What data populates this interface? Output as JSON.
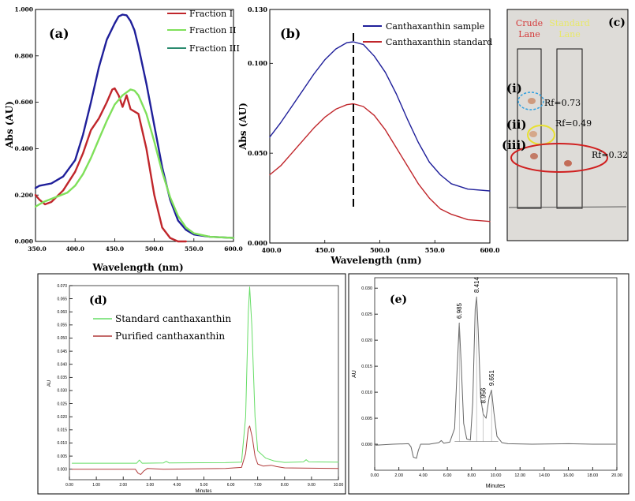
{
  "colors": {
    "blue": "#1f1f9a",
    "red": "#c0262b",
    "green": "#7fe05a",
    "teal": "#2a8a6e",
    "hplc_green": "#66dd66",
    "hplc_red": "#b03a3a",
    "hplc_gray": "#666666",
    "tlc_bg": "#dedcd8",
    "crude_label": "#d43b3b",
    "standard_label": "#e8e86a"
  },
  "chart_data": [
    {
      "id": "a",
      "type": "line",
      "panel_label": "(a)",
      "xlabel": "Wavelength (nm)",
      "ylabel": "Abs (AU)",
      "xlim": [
        350,
        600
      ],
      "ylim": [
        0,
        1.0
      ],
      "xticks": [
        "350.0",
        "400.0",
        "450.0",
        "500.0",
        "550.0",
        "600.0"
      ],
      "yticks": [
        "0.000",
        "0.200",
        "0.400",
        "0.600",
        "0.800",
        "1.000"
      ],
      "legend": [
        "Fraction I",
        "Fraction II",
        "Fraction III"
      ],
      "series": [
        {
          "name": "Fraction III",
          "color": "blue",
          "points": [
            [
              350,
              0.23
            ],
            [
              355,
              0.24
            ],
            [
              370,
              0.25
            ],
            [
              385,
              0.28
            ],
            [
              400,
              0.35
            ],
            [
              410,
              0.46
            ],
            [
              420,
              0.6
            ],
            [
              430,
              0.75
            ],
            [
              440,
              0.87
            ],
            [
              450,
              0.94
            ],
            [
              455,
              0.97
            ],
            [
              460,
              0.978
            ],
            [
              465,
              0.975
            ],
            [
              470,
              0.95
            ],
            [
              475,
              0.91
            ],
            [
              480,
              0.84
            ],
            [
              490,
              0.68
            ],
            [
              500,
              0.5
            ],
            [
              510,
              0.32
            ],
            [
              520,
              0.18
            ],
            [
              530,
              0.09
            ],
            [
              540,
              0.05
            ],
            [
              550,
              0.03
            ],
            [
              570,
              0.02
            ],
            [
              600,
              0.015
            ]
          ]
        },
        {
          "name": "Fraction I",
          "color": "red",
          "points": [
            [
              350,
              0.2
            ],
            [
              355,
              0.18
            ],
            [
              362,
              0.16
            ],
            [
              370,
              0.17
            ],
            [
              385,
              0.22
            ],
            [
              400,
              0.3
            ],
            [
              410,
              0.38
            ],
            [
              420,
              0.48
            ],
            [
              430,
              0.53
            ],
            [
              440,
              0.6
            ],
            [
              447,
              0.655
            ],
            [
              450,
              0.66
            ],
            [
              455,
              0.63
            ],
            [
              460,
              0.58
            ],
            [
              465,
              0.63
            ],
            [
              470,
              0.57
            ],
            [
              480,
              0.55
            ],
            [
              490,
              0.4
            ],
            [
              500,
              0.2
            ],
            [
              510,
              0.06
            ],
            [
              520,
              0.015
            ],
            [
              530,
              0.0
            ],
            [
              540,
              0.0
            ]
          ]
        },
        {
          "name": "Fraction II",
          "color": "green",
          "points": [
            [
              350,
              0.15
            ],
            [
              360,
              0.17
            ],
            [
              375,
              0.19
            ],
            [
              390,
              0.21
            ],
            [
              400,
              0.24
            ],
            [
              410,
              0.29
            ],
            [
              420,
              0.36
            ],
            [
              430,
              0.44
            ],
            [
              440,
              0.52
            ],
            [
              450,
              0.59
            ],
            [
              460,
              0.63
            ],
            [
              470,
              0.655
            ],
            [
              475,
              0.65
            ],
            [
              480,
              0.63
            ],
            [
              490,
              0.55
            ],
            [
              500,
              0.43
            ],
            [
              510,
              0.3
            ],
            [
              520,
              0.19
            ],
            [
              530,
              0.11
            ],
            [
              540,
              0.06
            ],
            [
              550,
              0.035
            ],
            [
              570,
              0.02
            ],
            [
              600,
              0.015
            ]
          ]
        }
      ]
    },
    {
      "id": "b",
      "type": "line",
      "panel_label": "(b)",
      "xlabel": "Wavelength (nm)",
      "ylabel": "Abs (AU)",
      "xlim": [
        400,
        600
      ],
      "ylim": [
        0,
        0.13
      ],
      "xticks": [
        "400.0",
        "450.0",
        "500.0",
        "550.0",
        "600.0"
      ],
      "yticks": [
        "0.000",
        "0.050",
        "0.100",
        "0.130"
      ],
      "legend": [
        "Canthaxanthin sample",
        "Canthaxanthin standard"
      ],
      "peak_marker_x": 476,
      "series": [
        {
          "name": "Canthaxanthin sample",
          "color": "blue",
          "points": [
            [
              400,
              0.059
            ],
            [
              410,
              0.067
            ],
            [
              420,
              0.076
            ],
            [
              430,
              0.085
            ],
            [
              440,
              0.094
            ],
            [
              450,
              0.102
            ],
            [
              460,
              0.108
            ],
            [
              470,
              0.1115
            ],
            [
              476,
              0.112
            ],
            [
              485,
              0.1105
            ],
            [
              495,
              0.104
            ],
            [
              505,
              0.095
            ],
            [
              515,
              0.083
            ],
            [
              525,
              0.069
            ],
            [
              535,
              0.056
            ],
            [
              545,
              0.045
            ],
            [
              555,
              0.038
            ],
            [
              565,
              0.033
            ],
            [
              580,
              0.03
            ],
            [
              600,
              0.029
            ]
          ]
        },
        {
          "name": "Canthaxanthin standard",
          "color": "red",
          "points": [
            [
              400,
              0.038
            ],
            [
              410,
              0.043
            ],
            [
              420,
              0.05
            ],
            [
              430,
              0.057
            ],
            [
              440,
              0.064
            ],
            [
              450,
              0.07
            ],
            [
              460,
              0.0745
            ],
            [
              470,
              0.077
            ],
            [
              476,
              0.0775
            ],
            [
              485,
              0.076
            ],
            [
              495,
              0.071
            ],
            [
              505,
              0.063
            ],
            [
              515,
              0.053
            ],
            [
              525,
              0.043
            ],
            [
              535,
              0.033
            ],
            [
              545,
              0.025
            ],
            [
              555,
              0.019
            ],
            [
              565,
              0.016
            ],
            [
              580,
              0.013
            ],
            [
              600,
              0.012
            ]
          ]
        }
      ]
    },
    {
      "id": "d",
      "type": "line",
      "panel_label": "(d)",
      "xlabel": "Minutes",
      "ylabel": "AU",
      "xlim": [
        0,
        10
      ],
      "ylim": [
        -0.004,
        0.07
      ],
      "xticks": [
        "0.00",
        "1.00",
        "2.00",
        "3.00",
        "4.00",
        "5.00",
        "6.00",
        "7.00",
        "8.00",
        "9.00",
        "10.00"
      ],
      "yticks": [
        "0.000",
        "0.005",
        "0.010",
        "0.015",
        "0.020",
        "0.025",
        "0.030",
        "0.035",
        "0.040",
        "0.045",
        "0.050",
        "0.055",
        "0.060",
        "0.065",
        "0.070"
      ],
      "legend": [
        "Standard canthaxanthin",
        "Purified canthaxanthin"
      ],
      "series": [
        {
          "name": "Standard canthaxanthin",
          "color": "hplc_green",
          "points": [
            [
              0.1,
              0.0023
            ],
            [
              2.5,
              0.0023
            ],
            [
              2.6,
              0.0035
            ],
            [
              2.7,
              0.0023
            ],
            [
              3.5,
              0.0024
            ],
            [
              3.6,
              0.003
            ],
            [
              3.7,
              0.0024
            ],
            [
              5.8,
              0.0025
            ],
            [
              6.4,
              0.0027
            ],
            [
              6.55,
              0.02
            ],
            [
              6.65,
              0.06
            ],
            [
              6.7,
              0.0695
            ],
            [
              6.78,
              0.055
            ],
            [
              6.9,
              0.02
            ],
            [
              7.0,
              0.007
            ],
            [
              7.3,
              0.0042
            ],
            [
              7.6,
              0.0032
            ],
            [
              8.0,
              0.0026
            ],
            [
              8.7,
              0.0028
            ],
            [
              8.8,
              0.0036
            ],
            [
              8.9,
              0.0028
            ],
            [
              10,
              0.0027
            ]
          ]
        },
        {
          "name": "Purified canthaxanthin",
          "color": "hplc_red",
          "points": [
            [
              0.1,
              0.0
            ],
            [
              2.45,
              0.0
            ],
            [
              2.55,
              -0.0015
            ],
            [
              2.65,
              -0.002
            ],
            [
              2.75,
              -0.0008
            ],
            [
              2.9,
              0.0003
            ],
            [
              3.5,
              0.0
            ],
            [
              5.8,
              0.0003
            ],
            [
              6.4,
              0.0007
            ],
            [
              6.55,
              0.006
            ],
            [
              6.65,
              0.0155
            ],
            [
              6.7,
              0.0165
            ],
            [
              6.8,
              0.012
            ],
            [
              6.9,
              0.005
            ],
            [
              7.0,
              0.002
            ],
            [
              7.2,
              0.0012
            ],
            [
              7.5,
              0.0015
            ],
            [
              7.7,
              0.001
            ],
            [
              8.0,
              0.0005
            ],
            [
              10,
              0.0003
            ]
          ]
        }
      ]
    },
    {
      "id": "e",
      "type": "line",
      "panel_label": "(e)",
      "xlabel": "Minutes",
      "ylabel": "AU",
      "xlim": [
        0,
        20
      ],
      "ylim": [
        -0.005,
        0.032
      ],
      "xticks": [
        "0.00",
        "2.00",
        "4.00",
        "6.00",
        "8.00",
        "10.00",
        "12.00",
        "14.00",
        "16.00",
        "18.00",
        "20.00"
      ],
      "yticks": [
        "0.000",
        "0.005",
        "0.010",
        "0.015",
        "0.020",
        "0.025",
        "0.030"
      ],
      "peak_labels": [
        {
          "x": 6.985,
          "y": 0.0235,
          "label": "6.985"
        },
        {
          "x": 8.414,
          "y": 0.0285,
          "label": "8.414"
        },
        {
          "x": 8.956,
          "y": 0.0072,
          "label": "8.956"
        },
        {
          "x": 9.651,
          "y": 0.0106,
          "label": "9.651"
        }
      ],
      "series": [
        {
          "name": "chromatogram",
          "color": "hplc_gray",
          "points": [
            [
              0.1,
              -0.0002
            ],
            [
              1.5,
              0.0
            ],
            [
              2.8,
              0.0001
            ],
            [
              3.0,
              -0.0005
            ],
            [
              3.2,
              -0.0025
            ],
            [
              3.45,
              -0.0027
            ],
            [
              3.6,
              -0.0012
            ],
            [
              3.8,
              0.0
            ],
            [
              4.5,
              0.0
            ],
            [
              5.3,
              0.0003
            ],
            [
              5.5,
              0.0007
            ],
            [
              5.7,
              0.0002
            ],
            [
              6.2,
              0.0004
            ],
            [
              6.6,
              0.003
            ],
            [
              6.8,
              0.014
            ],
            [
              6.985,
              0.0233
            ],
            [
              7.15,
              0.015
            ],
            [
              7.35,
              0.004
            ],
            [
              7.6,
              0.001
            ],
            [
              7.9,
              0.0008
            ],
            [
              8.1,
              0.008
            ],
            [
              8.3,
              0.026
            ],
            [
              8.414,
              0.0283
            ],
            [
              8.55,
              0.022
            ],
            [
              8.75,
              0.009
            ],
            [
              8.956,
              0.0058
            ],
            [
              9.2,
              0.005
            ],
            [
              9.45,
              0.009
            ],
            [
              9.651,
              0.0104
            ],
            [
              9.85,
              0.006
            ],
            [
              10.1,
              0.0015
            ],
            [
              10.5,
              0.0003
            ],
            [
              11,
              0.0001
            ],
            [
              13,
              0.0
            ],
            [
              16,
              0.0001
            ],
            [
              18,
              0.0
            ],
            [
              19.9,
              0.0
            ]
          ]
        }
      ]
    }
  ],
  "tlc": {
    "panel_label": "(c)",
    "crude_lane": "Crude\nLane",
    "standard_lane": "Standard\nLane",
    "spot_labels": [
      "(i)",
      "(ii)",
      "(iii)"
    ],
    "rf_values": [
      "Rf=0.73",
      "Rf=0.49",
      "Rf=0.32"
    ]
  }
}
